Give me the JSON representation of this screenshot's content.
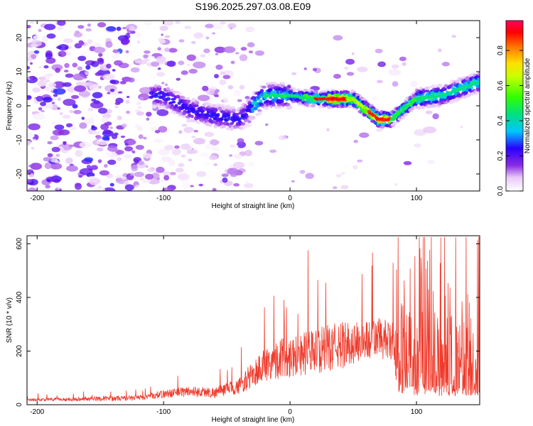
{
  "title": "S196.2025.297.03.08.E09",
  "chart_data": [
    {
      "type": "heatmap",
      "xlabel": "Height of straight line (km)",
      "ylabel": "Frequency (Hz)",
      "xlim": [
        -208,
        150
      ],
      "ylim": [
        -25,
        25
      ],
      "xticks": [
        -200,
        -100,
        0,
        100
      ],
      "yticks": [
        -20,
        -10,
        0,
        10,
        20
      ],
      "ridge": {
        "x": [
          -100,
          -80,
          -60,
          -40,
          -20,
          0,
          20,
          40,
          50,
          60,
          70,
          80,
          90,
          100,
          120,
          150
        ],
        "freq": [
          3,
          -1,
          -3,
          -4,
          3,
          3,
          2,
          2,
          2,
          -1,
          -4,
          -4,
          -1,
          2,
          3,
          7
        ]
      },
      "colorbar": {
        "label": "Normalized spectral amplitude",
        "ticks": [
          0.0,
          0.2,
          0.4,
          0.6,
          0.8
        ],
        "range": [
          0,
          0.97
        ]
      }
    },
    {
      "type": "line",
      "xlabel": "Height of straight line (km)",
      "ylabel": "SNR (10 * v/v)",
      "xlim": [
        -208,
        150
      ],
      "ylim": [
        0,
        630
      ],
      "xticks": [
        -200,
        -100,
        0,
        100
      ],
      "yticks": [
        0,
        200,
        400,
        600
      ],
      "color": "#ef3b2c",
      "envelope": {
        "x": [
          -208,
          -120,
          -100,
          -80,
          -60,
          -40,
          -30,
          -20,
          -10,
          0,
          20,
          40,
          60,
          70,
          80,
          90,
          100,
          120,
          150
        ],
        "base": [
          18,
          25,
          40,
          50,
          45,
          70,
          110,
          150,
          170,
          180,
          200,
          220,
          240,
          250,
          230,
          150,
          140,
          130,
          120
        ],
        "amp": [
          10,
          20,
          30,
          40,
          40,
          60,
          100,
          130,
          150,
          160,
          170,
          180,
          150,
          160,
          150,
          350,
          300,
          350,
          300
        ]
      }
    }
  ]
}
